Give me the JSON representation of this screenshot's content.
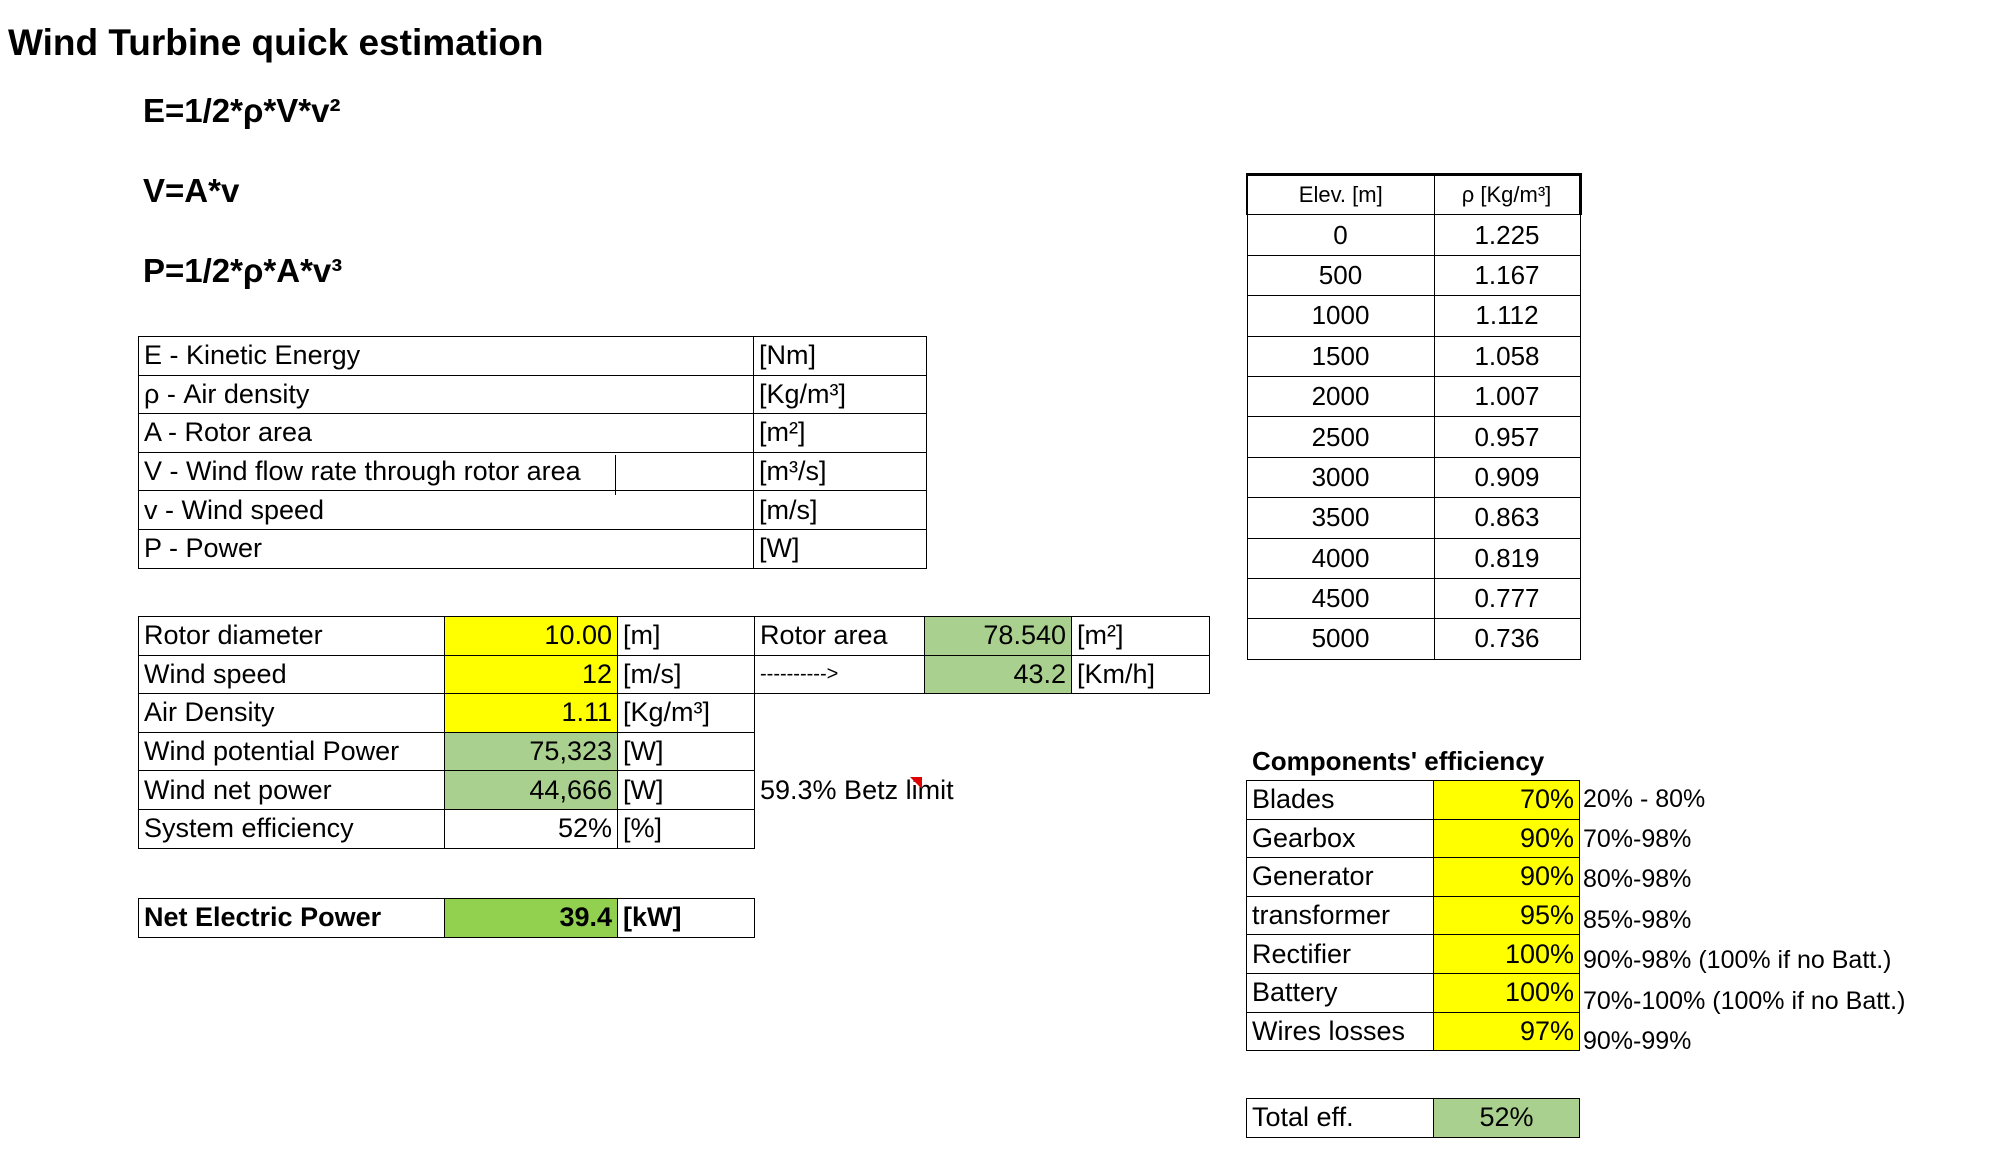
{
  "title": "Wind Turbine quick estimation",
  "formulas": {
    "energy": "E=1/2*ρ*V*v²",
    "flow": "V=A*v",
    "power": "P=1/2*ρ*A*v³"
  },
  "legend": [
    {
      "label": "E - Kinetic Energy",
      "unit": "[Nm]"
    },
    {
      "label": "ρ - Air density",
      "unit": "[Kg/m³]"
    },
    {
      "label": "A - Rotor area",
      "unit": "[m²]"
    },
    {
      "label": "V - Wind flow rate through rotor area",
      "unit": "[m³/s]"
    },
    {
      "label": "v - Wind speed",
      "unit": "[m/s]"
    },
    {
      "label": "P - Power",
      "unit": "[W]"
    }
  ],
  "calc": {
    "rotor_diameter": {
      "label": "Rotor diameter",
      "value": "10.00",
      "unit": "[m]"
    },
    "wind_speed": {
      "label": "Wind speed",
      "value": "12",
      "unit": "[m/s]"
    },
    "air_density": {
      "label": "Air Density",
      "value": "1.11",
      "unit": "[Kg/m³]"
    },
    "potential_power": {
      "label": "Wind potential Power",
      "value": "75,323",
      "unit": "[W]"
    },
    "net_power": {
      "label": "Wind net power",
      "value": "44,666",
      "unit": "[W]"
    },
    "system_efficiency": {
      "label": "System efficiency",
      "value": "52%",
      "unit": "[%]"
    },
    "rotor_area": {
      "label": "Rotor area",
      "value": "78.540",
      "unit": "[m²]"
    },
    "arrow": "---------->",
    "speed_kmh": {
      "value": "43.2",
      "unit": "[Km/h]"
    },
    "betz": "59.3% Betz limit"
  },
  "net_electric": {
    "label": "Net Electric Power",
    "value": "39.4",
    "unit": "[kW]"
  },
  "elevation_table": {
    "headers": [
      "Elev. [m]",
      "ρ [Kg/m³]"
    ],
    "rows": [
      [
        "0",
        "1.225"
      ],
      [
        "500",
        "1.167"
      ],
      [
        "1000",
        "1.112"
      ],
      [
        "1500",
        "1.058"
      ],
      [
        "2000",
        "1.007"
      ],
      [
        "2500",
        "0.957"
      ],
      [
        "3000",
        "0.909"
      ],
      [
        "3500",
        "0.863"
      ],
      [
        "4000",
        "0.819"
      ],
      [
        "4500",
        "0.777"
      ],
      [
        "5000",
        "0.736"
      ]
    ]
  },
  "components": {
    "title": "Components' efficiency",
    "rows": [
      {
        "name": "Blades",
        "eff": "70%",
        "range": "20% - 80%"
      },
      {
        "name": "Gearbox",
        "eff": "90%",
        "range": "70%-98%"
      },
      {
        "name": "Generator",
        "eff": "90%",
        "range": "80%-98%"
      },
      {
        "name": "transformer",
        "eff": "95%",
        "range": "85%-98%"
      },
      {
        "name": "Rectifier",
        "eff": "100%",
        "range": "90%-98% (100% if no Batt.)"
      },
      {
        "name": "Battery",
        "eff": "100%",
        "range": "70%-100% (100% if no Batt.)"
      },
      {
        "name": "Wires losses",
        "eff": "97%",
        "range": "90%-99%"
      }
    ],
    "total_label": "Total eff.",
    "total_value": "52%"
  },
  "colors": {
    "input": "#ffff00",
    "computed": "#a9d08e",
    "result": "#92d050"
  }
}
